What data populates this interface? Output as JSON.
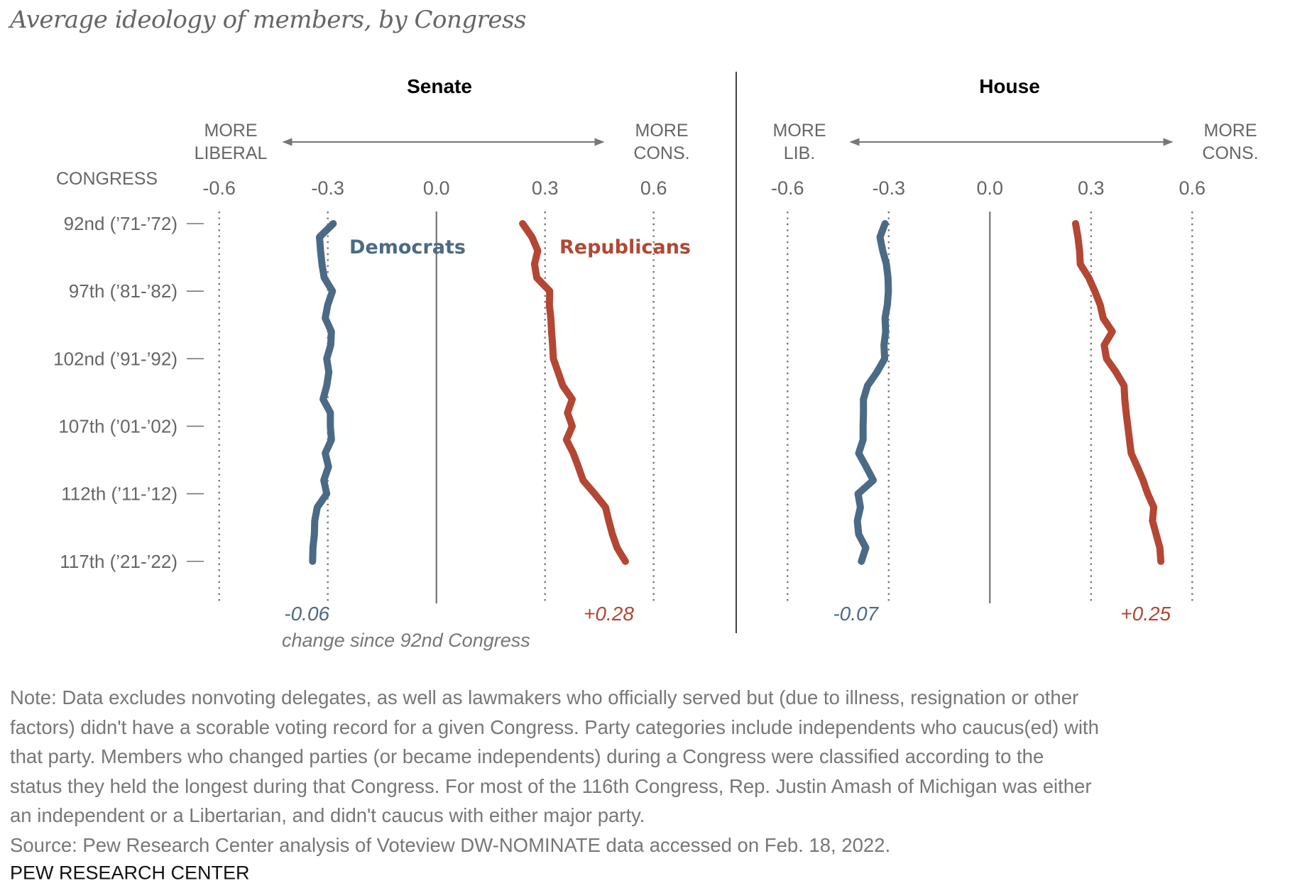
{
  "title": "Average ideology of members, by Congress",
  "chart_data": [
    {
      "type": "line",
      "title": "Senate",
      "orientation": "vertical (x = ideology score, y = Congress)",
      "direction_labels": {
        "left": [
          "MORE",
          "LIBERAL"
        ],
        "right": [
          "MORE",
          "CONS."
        ]
      },
      "ylabel": "CONGRESS",
      "xlim": [
        -0.6,
        0.6
      ],
      "xticks": [
        "-0.6",
        "-0.3",
        "0.0",
        "0.3",
        "0.6"
      ],
      "grid": "dotted vertical lines at -0.6, -0.3, 0.3, 0.6; solid at 0.0",
      "congresses": [
        92,
        93,
        94,
        95,
        96,
        97,
        98,
        99,
        100,
        101,
        102,
        103,
        104,
        105,
        106,
        107,
        108,
        109,
        110,
        111,
        112,
        113,
        114,
        115,
        116,
        117
      ],
      "series": [
        {
          "name": "Democrats",
          "color": "#4b6a85",
          "change_label": "-0.06",
          "values": [
            -0.285,
            -0.323,
            -0.32,
            -0.316,
            -0.31,
            -0.287,
            -0.3,
            -0.307,
            -0.29,
            -0.292,
            -0.303,
            -0.297,
            -0.303,
            -0.313,
            -0.293,
            -0.293,
            -0.29,
            -0.307,
            -0.298,
            -0.311,
            -0.303,
            -0.329,
            -0.336,
            -0.337,
            -0.341,
            -0.342
          ]
        },
        {
          "name": "Republicans",
          "color": "#b34733",
          "change_label": "+0.28",
          "values": [
            0.238,
            0.264,
            0.28,
            0.271,
            0.277,
            0.313,
            0.312,
            0.316,
            0.318,
            0.321,
            0.323,
            0.336,
            0.349,
            0.375,
            0.362,
            0.375,
            0.359,
            0.378,
            0.392,
            0.405,
            0.437,
            0.467,
            0.476,
            0.486,
            0.499,
            0.522
          ]
        }
      ],
      "change_caption": "change since 92nd Congress"
    },
    {
      "type": "line",
      "title": "House",
      "orientation": "vertical (x = ideology score, y = Congress)",
      "direction_labels": {
        "left": [
          "MORE",
          "LIB."
        ],
        "right": [
          "MORE",
          "CONS."
        ]
      },
      "xlim": [
        -0.6,
        0.6
      ],
      "xticks": [
        "-0.6",
        "-0.3",
        "0.0",
        "0.3",
        "0.6"
      ],
      "grid": "dotted vertical lines at -0.6, -0.3, 0.3, 0.6; solid at 0.0",
      "congresses": [
        92,
        93,
        94,
        95,
        96,
        97,
        98,
        99,
        100,
        101,
        102,
        103,
        104,
        105,
        106,
        107,
        108,
        109,
        110,
        111,
        112,
        113,
        114,
        115,
        116,
        117
      ],
      "series": [
        {
          "name": "Democrats",
          "color": "#4b6a85",
          "change_label": "-0.07",
          "values": [
            -0.311,
            -0.326,
            -0.318,
            -0.307,
            -0.302,
            -0.301,
            -0.304,
            -0.311,
            -0.309,
            -0.314,
            -0.312,
            -0.335,
            -0.363,
            -0.375,
            -0.375,
            -0.376,
            -0.376,
            -0.389,
            -0.367,
            -0.346,
            -0.391,
            -0.384,
            -0.393,
            -0.389,
            -0.368,
            -0.381
          ]
        },
        {
          "name": "Republicans",
          "color": "#b34733",
          "change_label": "+0.25",
          "values": [
            0.254,
            0.261,
            0.266,
            0.268,
            0.293,
            0.311,
            0.327,
            0.336,
            0.363,
            0.339,
            0.346,
            0.374,
            0.398,
            0.4,
            0.404,
            0.409,
            0.414,
            0.419,
            0.437,
            0.454,
            0.468,
            0.486,
            0.482,
            0.493,
            0.504,
            0.507
          ]
        }
      ]
    }
  ],
  "row_labels": [
    {
      "index": 0,
      "label": "92nd (’71-’72)"
    },
    {
      "index": 5,
      "label": "97th (’81-’82)"
    },
    {
      "index": 10,
      "label": "102nd (’91-’92)"
    },
    {
      "index": 15,
      "label": "107th (’01-’02)"
    },
    {
      "index": 20,
      "label": "112th (’11-’12)"
    },
    {
      "index": 25,
      "label": "117th (’21-’22)"
    }
  ],
  "note_lines": [
    "Note: Data excludes nonvoting delegates, as well as lawmakers who officially served but (due to illness, resignation or other",
    "factors) didn't have a scorable voting record for a given Congress. Party categories include independents who caucus(ed) with",
    "that party. Members who changed parties (or became independents) during a Congress were classified according to the",
    "status they held the longest during that Congress. For most of the 116th Congress, Rep. Justin Amash of Michigan was either",
    "an independent or a Libertarian, and didn't caucus with either major party.",
    "Source: Pew Research Center analysis of Voteview DW-NOMINATE data accessed on Feb. 18, 2022."
  ],
  "footer": "PEW RESEARCH CENTER"
}
